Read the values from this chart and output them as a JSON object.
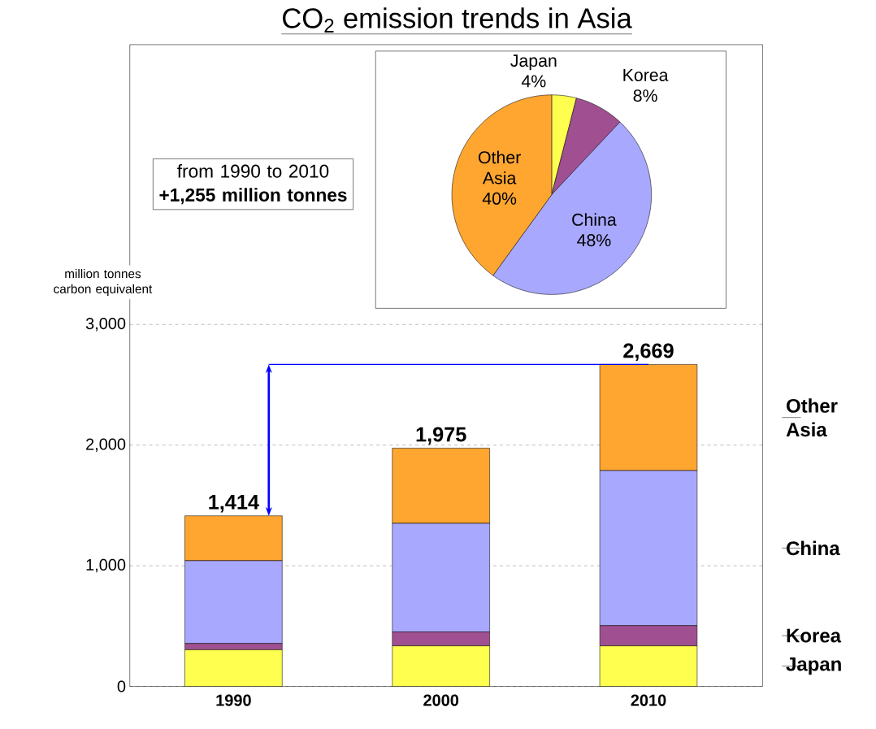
{
  "chart_data": [
    {
      "type": "bar",
      "title": "CO$_{2}$ emission trends in Asia",
      "ylabel": "million tonnes carbon equivalent",
      "categories": [
        "1990",
        "2000",
        "2010"
      ],
      "stacked": true,
      "series": [
        {
          "name": "Japan",
          "color": "#ffff50",
          "values": [
            303,
            336,
            336
          ]
        },
        {
          "name": "Korea",
          "color": "#a05090",
          "values": [
            53,
            115,
            168
          ]
        },
        {
          "name": "China",
          "color": "#a8a8ff",
          "values": [
            686,
            901,
            1285
          ]
        },
        {
          "name": "Other Asia",
          "color": "#ffa630",
          "values": [
            372,
            623,
            880
          ]
        }
      ],
      "legend": "right",
      "totals": [
        "1,414",
        "1,975",
        "2,669"
      ],
      "ylim": [
        0,
        5320
      ],
      "yticks": [
        0,
        {
          "value": 1000,
          "label": "1,000"
        },
        {
          "value": 2000,
          "label": "2,000"
        },
        {
          "value": 3000,
          "label": "3,000"
        }
      ],
      "grid": "y",
      "annotations": [
        "from 1990 to 2010 **+1,255 million tonnes**"
      ]
    },
    {
      "type": "pie",
      "categories": [
        "Japan",
        "Korea",
        "China",
        "Other Asia"
      ],
      "values": [
        4,
        8,
        48,
        40
      ],
      "colors": [
        "#ffff50",
        "#a05090",
        "#a8a8ff",
        "#ffa630"
      ],
      "value_labels": [
        "4%",
        "8%",
        "48%",
        "40%"
      ]
    }
  ]
}
